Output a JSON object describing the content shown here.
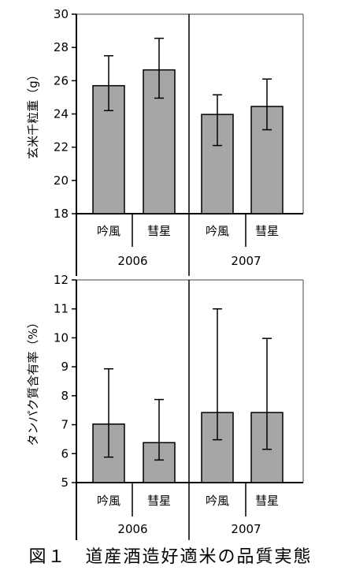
{
  "caption": "図１　道産酒造好適米の品質実態",
  "colors": {
    "bar": "#a6a6a6",
    "frame": "#808080",
    "axis": "#000000"
  },
  "chart_data": [
    {
      "type": "bar",
      "ylabel": "玄米千粒重（g）",
      "ylim": [
        18,
        30
      ],
      "yticks": [
        18,
        20,
        22,
        24,
        26,
        28,
        30
      ],
      "groups": [
        "2006",
        "2007"
      ],
      "categories": [
        "吟風",
        "彗星",
        "吟風",
        "彗星"
      ],
      "values": [
        25.7,
        26.65,
        23.97,
        24.45
      ],
      "error_low": [
        24.2,
        24.95,
        22.1,
        23.05
      ],
      "error_high": [
        27.5,
        28.55,
        25.15,
        26.1
      ]
    },
    {
      "type": "bar",
      "ylabel": "タンパク質含有率（%）",
      "ylim": [
        5,
        12
      ],
      "yticks": [
        5,
        6,
        7,
        8,
        9,
        10,
        11,
        12
      ],
      "groups": [
        "2006",
        "2007"
      ],
      "categories": [
        "吟風",
        "彗星",
        "吟風",
        "彗星"
      ],
      "values": [
        7.02,
        6.38,
        7.42,
        7.42
      ],
      "error_low": [
        5.88,
        5.78,
        6.48,
        6.15
      ],
      "error_high": [
        8.93,
        7.87,
        11.0,
        9.98
      ]
    }
  ]
}
